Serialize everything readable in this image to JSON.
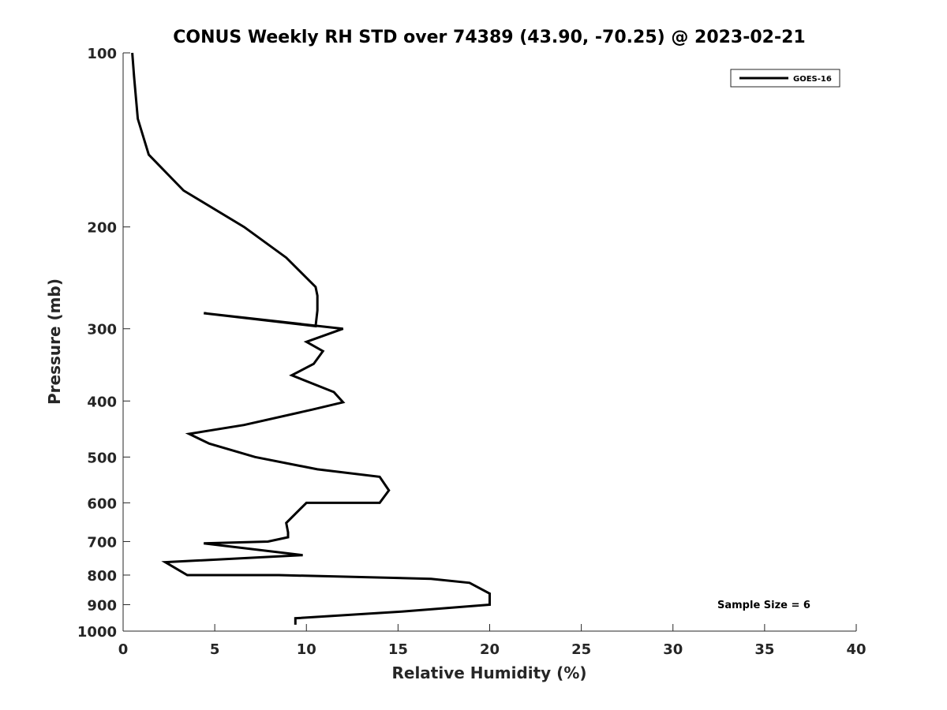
{
  "chart_data": {
    "type": "line",
    "title": "CONUS Weekly RH STD over 74389 (43.90, -70.25) @ 2023-02-21",
    "xlabel": "Relative Humidity (%)",
    "ylabel": "Pressure (mb)",
    "xlim": [
      0,
      40
    ],
    "ylim": [
      100,
      1000
    ],
    "y_scale": "log",
    "y_reversed": true,
    "x_ticks": [
      0,
      5,
      10,
      15,
      20,
      25,
      30,
      35,
      40
    ],
    "y_ticks": [
      100,
      200,
      300,
      400,
      500,
      600,
      700,
      800,
      900,
      1000
    ],
    "grid": false,
    "legend_position": "top-right",
    "annotation": "Sample Size = 6",
    "series": [
      {
        "name": "GOES-16",
        "color": "#000000",
        "x": [
          0.5,
          0.6,
          0.8,
          1.4,
          3.3,
          6.6,
          8.9,
          10.5,
          10.6,
          10.6,
          10.5,
          4.4,
          12.0,
          10.0,
          10.9,
          10.4,
          9.2,
          11.5,
          12.0,
          10.3,
          6.6,
          3.6,
          4.7,
          7.2,
          10.6,
          14.0,
          14.5,
          14.0,
          10.0,
          8.9,
          9.0,
          9.0,
          7.9,
          4.4,
          9.8,
          2.3,
          3.5,
          4.1,
          8.5,
          16.8,
          18.9,
          20.0,
          20.0,
          15.2,
          9.4,
          9.4
        ],
        "y": [
          100,
          110,
          130,
          150,
          173,
          200,
          226,
          254,
          263,
          279,
          297,
          282,
          300,
          316,
          328,
          345,
          361,
          386,
          402,
          414,
          440,
          456,
          474,
          500,
          525,
          541,
          571,
          600,
          600,
          650,
          675,
          688,
          700,
          705,
          739,
          760,
          800,
          800,
          800,
          812,
          825,
          861,
          900,
          925,
          950,
          975
        ]
      }
    ]
  }
}
